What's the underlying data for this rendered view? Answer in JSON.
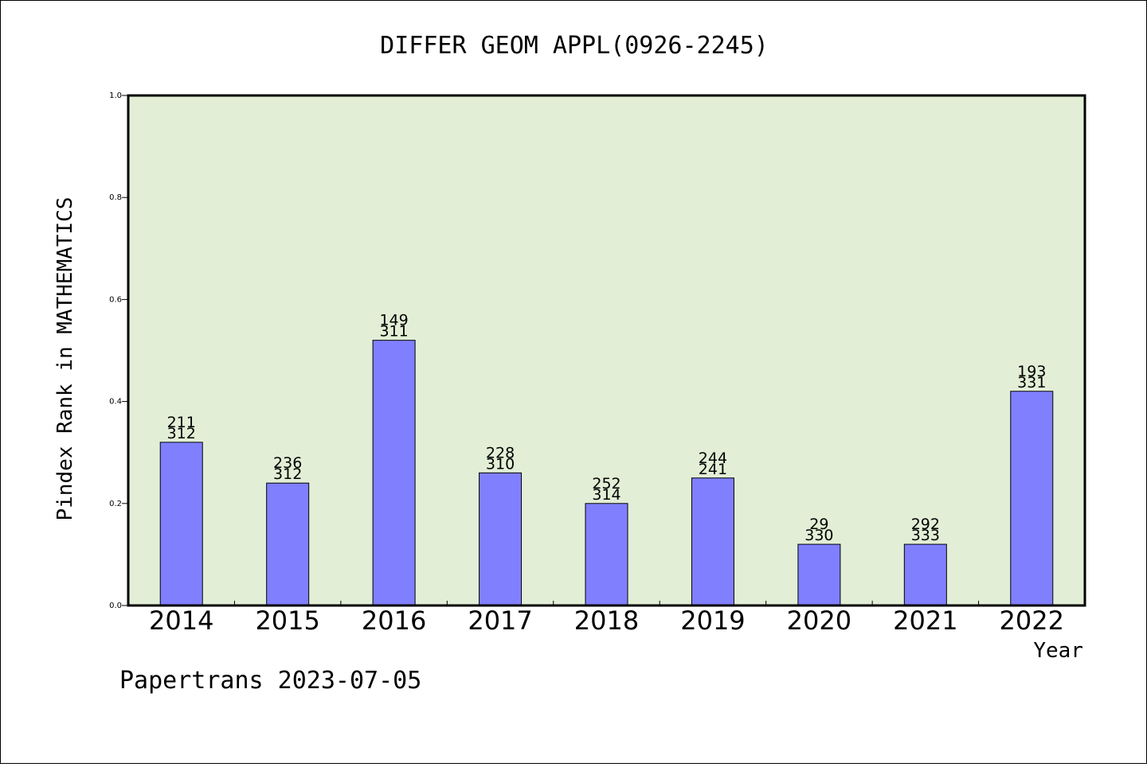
{
  "chart_data": {
    "type": "bar",
    "title": "DIFFER GEOM APPL(0926-2245)",
    "xlabel": "Year",
    "ylabel": "Pindex Rank in MATHEMATICS",
    "ylim": [
      0,
      1.0
    ],
    "yticks": [
      "0.0",
      "0.2",
      "0.4",
      "0.6",
      "0.8",
      "1.0"
    ],
    "grid": false,
    "categories": [
      "2014",
      "2015",
      "2016",
      "2017",
      "2018",
      "2019",
      "2020",
      "2021",
      "2022"
    ],
    "values": [
      0.32,
      0.24,
      0.52,
      0.26,
      0.2,
      0.25,
      0.12,
      0.12,
      0.42
    ],
    "labels_top": [
      "211",
      "236",
      "149",
      "228",
      "252",
      "244",
      "29",
      "292",
      "193"
    ],
    "labels_bottom": [
      "312",
      "312",
      "311",
      "310",
      "314",
      "241",
      "330",
      "333",
      "331"
    ],
    "colors": {
      "bar": "#8080ff",
      "plot_background": "#e2efd6",
      "axis": "#000000"
    }
  },
  "footer": "Papertrans 2023-07-05"
}
